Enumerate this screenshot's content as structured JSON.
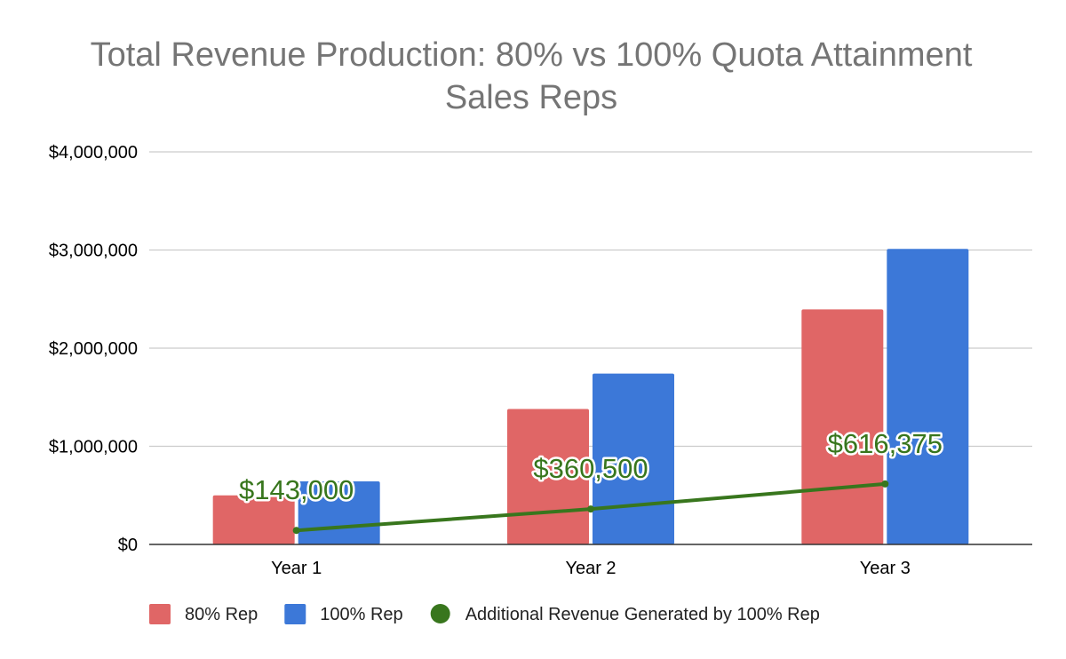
{
  "chart_data": {
    "type": "bar",
    "title": "Total Revenue Production: 80% vs 100% Quota Attainment",
    "subtitle": "Sales Reps",
    "categories": [
      "Year 1",
      "Year 2",
      "Year 3"
    ],
    "series": [
      {
        "name": "80% Rep",
        "type": "bar",
        "color": "#e06666",
        "values": [
          500000,
          1380000,
          2395000
        ]
      },
      {
        "name": "100% Rep",
        "type": "bar",
        "color": "#3c78d8",
        "values": [
          643000,
          1740500,
          3011375
        ]
      },
      {
        "name": "Additional Revenue Generated by 100% Rep",
        "type": "line",
        "color": "#38761d",
        "values": [
          143000,
          360500,
          616375
        ],
        "labels": [
          "$143,000",
          "$360,500",
          "$616,375"
        ]
      }
    ],
    "ylim": [
      0,
      4000000
    ],
    "yticks": [
      0,
      1000000,
      2000000,
      3000000,
      4000000
    ],
    "ytick_labels": [
      "$0",
      "$1,000,000",
      "$2,000,000",
      "$3,000,000",
      "$4,000,000"
    ],
    "grid": true,
    "legend_position": "bottom",
    "xlabel": "",
    "ylabel": ""
  }
}
